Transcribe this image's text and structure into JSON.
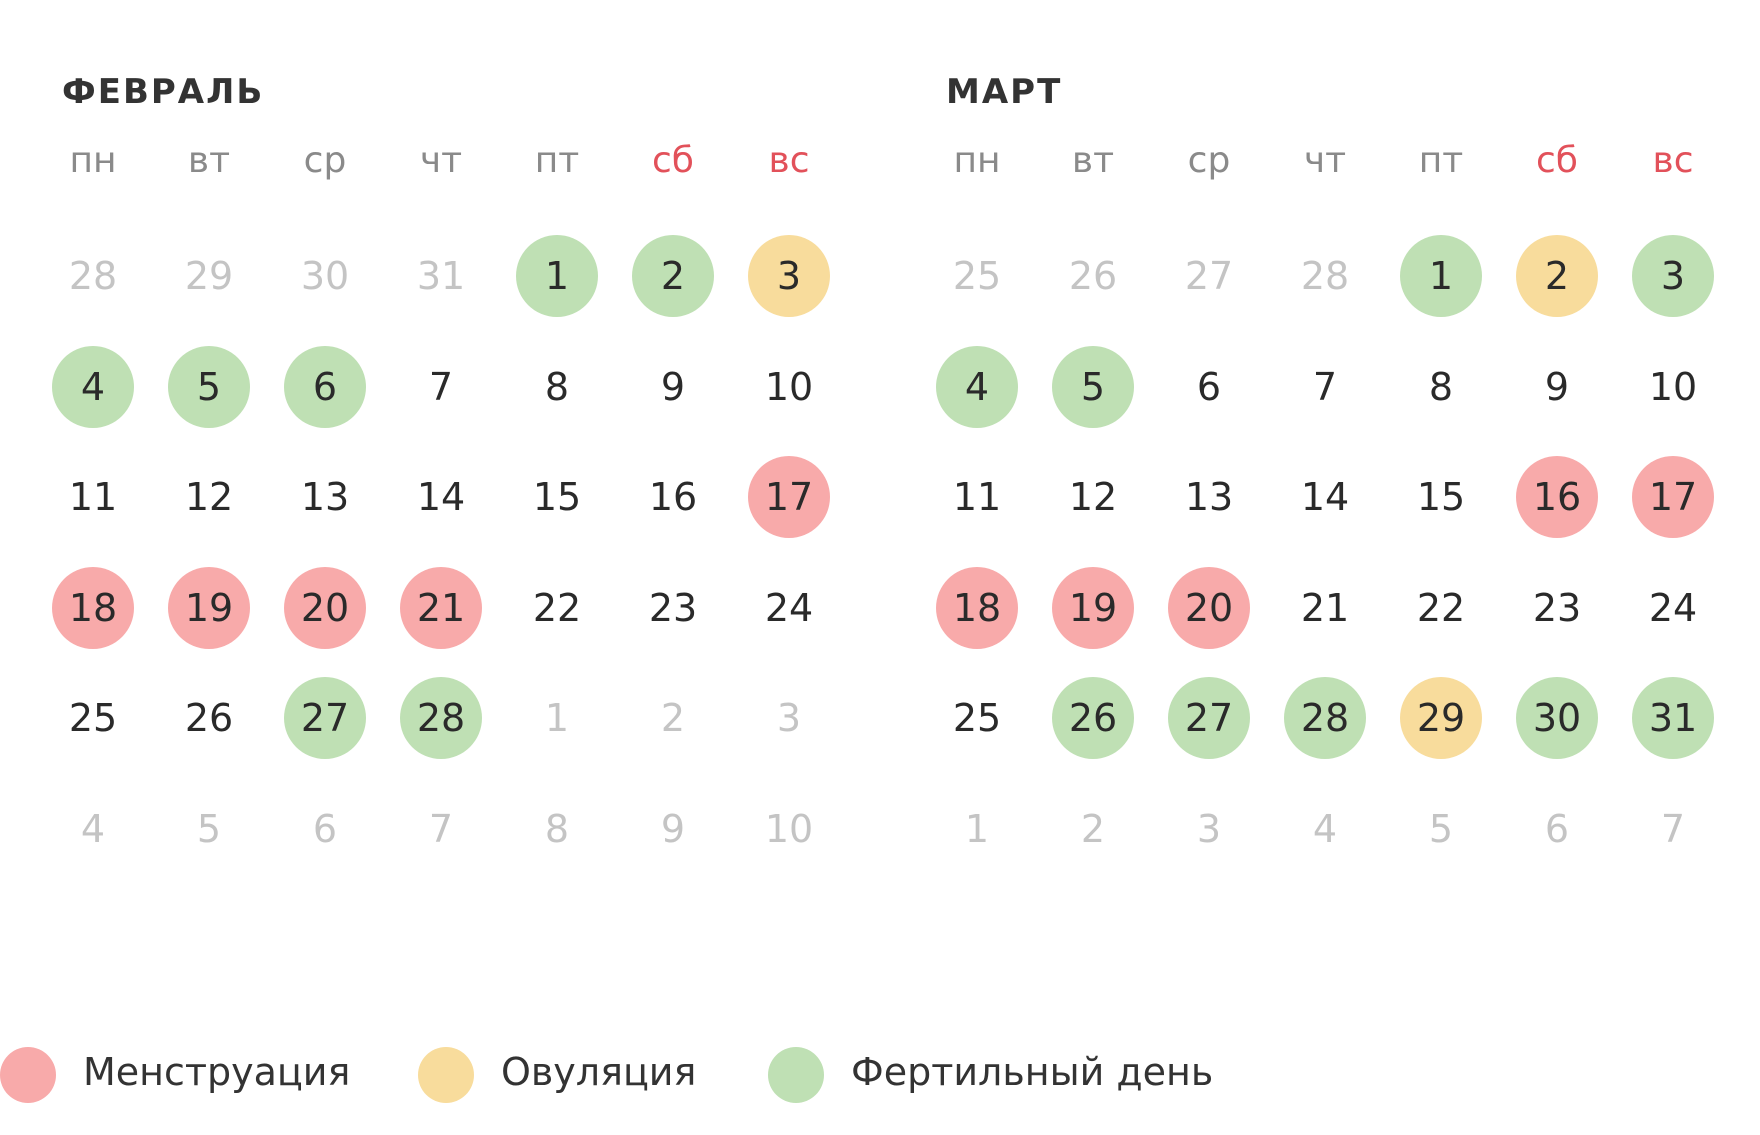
{
  "colors": {
    "menstruation": "#f8aaaa",
    "ovulation": "#f8dc9c",
    "fertile": "#bfe0b4",
    "weekend": "#e2515a",
    "weekday": "#8a8a8a",
    "other_month_day": "#c4c4c4"
  },
  "weekdays": [
    "пн",
    "вт",
    "ср",
    "чт",
    "пт",
    "сб",
    "вс"
  ],
  "months": [
    {
      "title": "ФЕВРАЛЬ",
      "days": [
        {
          "d": "28",
          "other": true
        },
        {
          "d": "29",
          "other": true
        },
        {
          "d": "30",
          "other": true
        },
        {
          "d": "31",
          "other": true
        },
        {
          "d": "1",
          "type": "fertile"
        },
        {
          "d": "2",
          "type": "fertile"
        },
        {
          "d": "3",
          "type": "ovulation"
        },
        {
          "d": "4",
          "type": "fertile"
        },
        {
          "d": "5",
          "type": "fertile"
        },
        {
          "d": "6",
          "type": "fertile"
        },
        {
          "d": "7"
        },
        {
          "d": "8"
        },
        {
          "d": "9"
        },
        {
          "d": "10"
        },
        {
          "d": "11"
        },
        {
          "d": "12"
        },
        {
          "d": "13"
        },
        {
          "d": "14"
        },
        {
          "d": "15"
        },
        {
          "d": "16"
        },
        {
          "d": "17",
          "type": "menstruation"
        },
        {
          "d": "18",
          "type": "menstruation"
        },
        {
          "d": "19",
          "type": "menstruation"
        },
        {
          "d": "20",
          "type": "menstruation"
        },
        {
          "d": "21",
          "type": "menstruation"
        },
        {
          "d": "22"
        },
        {
          "d": "23"
        },
        {
          "d": "24"
        },
        {
          "d": "25"
        },
        {
          "d": "26"
        },
        {
          "d": "27",
          "type": "fertile"
        },
        {
          "d": "28",
          "type": "fertile"
        },
        {
          "d": "1",
          "other": true
        },
        {
          "d": "2",
          "other": true
        },
        {
          "d": "3",
          "other": true
        },
        {
          "d": "4",
          "other": true
        },
        {
          "d": "5",
          "other": true
        },
        {
          "d": "6",
          "other": true
        },
        {
          "d": "7",
          "other": true
        },
        {
          "d": "8",
          "other": true
        },
        {
          "d": "9",
          "other": true
        },
        {
          "d": "10",
          "other": true
        }
      ]
    },
    {
      "title": "МАРТ",
      "days": [
        {
          "d": "25",
          "other": true
        },
        {
          "d": "26",
          "other": true
        },
        {
          "d": "27",
          "other": true
        },
        {
          "d": "28",
          "other": true
        },
        {
          "d": "1",
          "type": "fertile"
        },
        {
          "d": "2",
          "type": "ovulation"
        },
        {
          "d": "3",
          "type": "fertile"
        },
        {
          "d": "4",
          "type": "fertile"
        },
        {
          "d": "5",
          "type": "fertile"
        },
        {
          "d": "6"
        },
        {
          "d": "7"
        },
        {
          "d": "8"
        },
        {
          "d": "9"
        },
        {
          "d": "10"
        },
        {
          "d": "11"
        },
        {
          "d": "12"
        },
        {
          "d": "13"
        },
        {
          "d": "14"
        },
        {
          "d": "15"
        },
        {
          "d": "16",
          "type": "menstruation"
        },
        {
          "d": "17",
          "type": "menstruation"
        },
        {
          "d": "18",
          "type": "menstruation"
        },
        {
          "d": "19",
          "type": "menstruation"
        },
        {
          "d": "20",
          "type": "menstruation"
        },
        {
          "d": "21"
        },
        {
          "d": "22"
        },
        {
          "d": "23"
        },
        {
          "d": "24"
        },
        {
          "d": "25"
        },
        {
          "d": "26",
          "type": "fertile"
        },
        {
          "d": "27",
          "type": "fertile"
        },
        {
          "d": "28",
          "type": "fertile"
        },
        {
          "d": "29",
          "type": "ovulation"
        },
        {
          "d": "30",
          "type": "fertile"
        },
        {
          "d": "31",
          "type": "fertile"
        },
        {
          "d": "1",
          "other": true
        },
        {
          "d": "2",
          "other": true
        },
        {
          "d": "3",
          "other": true
        },
        {
          "d": "4",
          "other": true
        },
        {
          "d": "5",
          "other": true
        },
        {
          "d": "6",
          "other": true
        },
        {
          "d": "7",
          "other": true
        }
      ]
    }
  ],
  "legend": [
    {
      "key": "menstruation",
      "label": "Менструация"
    },
    {
      "key": "ovulation",
      "label": "Овуляция"
    },
    {
      "key": "fertile",
      "label": "Фертильный день"
    }
  ]
}
